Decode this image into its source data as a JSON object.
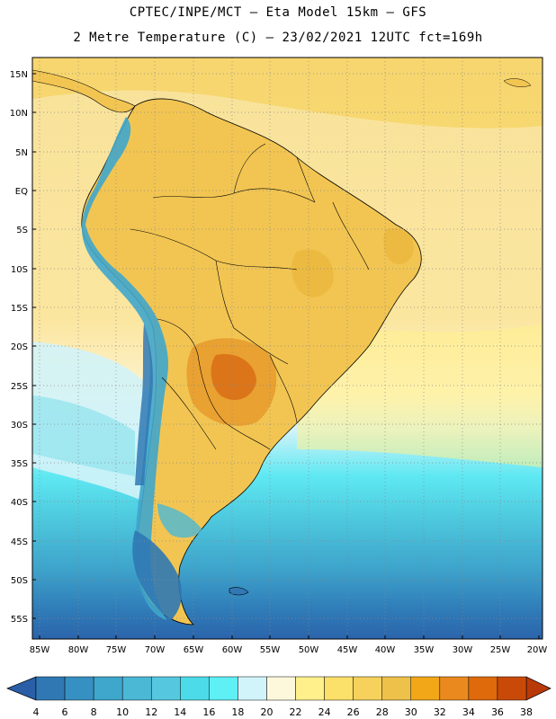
{
  "header": {
    "line1": "CPTEC/INPE/MCT –  Eta Model 15km – GFS",
    "line2": "2 Metre Temperature (C) – 23/02/2021 12UTC fct=169h"
  },
  "map": {
    "lat_labels": [
      "15N",
      "10N",
      "5N",
      "EQ",
      "5S",
      "10S",
      "15S",
      "20S",
      "25S",
      "30S",
      "35S",
      "40S",
      "45S",
      "50S",
      "55S"
    ],
    "lon_labels": [
      "85W",
      "80W",
      "75W",
      "70W",
      "65W",
      "60W",
      "55W",
      "50W",
      "45W",
      "40W",
      "35W",
      "30W",
      "25W",
      "20W"
    ],
    "lat_range": [
      -58,
      16
    ],
    "lon_range": [
      -85.5,
      -20
    ],
    "variable": "2 Metre Temperature",
    "units": "C"
  },
  "colorbar": {
    "labels": [
      "4",
      "6",
      "8",
      "10",
      "12",
      "14",
      "16",
      "18",
      "20",
      "22",
      "24",
      "26",
      "28",
      "30",
      "32",
      "34",
      "36",
      "38"
    ],
    "colors": [
      "#2a5fa8",
      "#2f78b4",
      "#3790c2",
      "#3fa6cc",
      "#4bb8d6",
      "#55c8e0",
      "#4cdbe8",
      "#5ef0f5",
      "#d0f4fa",
      "#fdf8dc",
      "#fff08c",
      "#fbe06a",
      "#f6d25c",
      "#eec14a",
      "#f2a718",
      "#ea8a1e",
      "#de6a0c",
      "#c94a08",
      "#b83a08"
    ]
  }
}
